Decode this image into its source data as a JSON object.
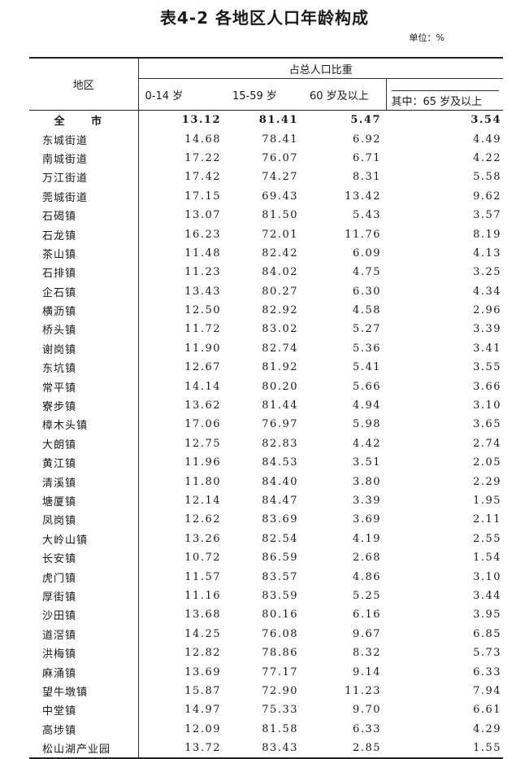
{
  "title": "表4-2  各地区人口年龄构成",
  "unit": "单位：%",
  "headers": {
    "region": "地区",
    "group": "占总人口比重",
    "cols": [
      "0-14 岁",
      "15-59 岁",
      "60 岁及以上",
      "其中：65 岁及以上"
    ]
  },
  "rows": [
    {
      "region": "全  市",
      "v": [
        "13.12",
        "81.41",
        "5.47",
        "3.54"
      ]
    },
    {
      "region": "东城街道",
      "v": [
        "14.68",
        "78.41",
        "6.92",
        "4.49"
      ]
    },
    {
      "region": "南城街道",
      "v": [
        "17.22",
        "76.07",
        "6.71",
        "4.22"
      ]
    },
    {
      "region": "万江街道",
      "v": [
        "17.42",
        "74.27",
        "8.31",
        "5.58"
      ]
    },
    {
      "region": "莞城街道",
      "v": [
        "17.15",
        "69.43",
        "13.42",
        "9.62"
      ]
    },
    {
      "region": "石碣镇",
      "v": [
        "13.07",
        "81.50",
        "5.43",
        "3.57"
      ]
    },
    {
      "region": "石龙镇",
      "v": [
        "16.23",
        "72.01",
        "11.76",
        "8.19"
      ]
    },
    {
      "region": "茶山镇",
      "v": [
        "11.48",
        "82.42",
        "6.09",
        "4.13"
      ]
    },
    {
      "region": "石排镇",
      "v": [
        "11.23",
        "84.02",
        "4.75",
        "3.25"
      ]
    },
    {
      "region": "企石镇",
      "v": [
        "13.43",
        "80.27",
        "6.30",
        "4.34"
      ]
    },
    {
      "region": "横沥镇",
      "v": [
        "12.50",
        "82.92",
        "4.58",
        "2.96"
      ]
    },
    {
      "region": "桥头镇",
      "v": [
        "11.72",
        "83.02",
        "5.27",
        "3.39"
      ]
    },
    {
      "region": "谢岗镇",
      "v": [
        "11.90",
        "82.74",
        "5.36",
        "3.41"
      ]
    },
    {
      "region": "东坑镇",
      "v": [
        "12.67",
        "81.92",
        "5.41",
        "3.55"
      ]
    },
    {
      "region": "常平镇",
      "v": [
        "14.14",
        "80.20",
        "5.66",
        "3.66"
      ]
    },
    {
      "region": "寮步镇",
      "v": [
        "13.62",
        "81.44",
        "4.94",
        "3.10"
      ]
    },
    {
      "region": "樟木头镇",
      "v": [
        "17.06",
        "76.97",
        "5.98",
        "3.65"
      ]
    },
    {
      "region": "大朗镇",
      "v": [
        "12.75",
        "82.83",
        "4.42",
        "2.74"
      ]
    },
    {
      "region": "黄江镇",
      "v": [
        "11.96",
        "84.53",
        "3.51",
        "2.05"
      ]
    },
    {
      "region": "清溪镇",
      "v": [
        "11.80",
        "84.40",
        "3.80",
        "2.29"
      ]
    },
    {
      "region": "塘厦镇",
      "v": [
        "12.14",
        "84.47",
        "3.39",
        "1.95"
      ]
    },
    {
      "region": "凤岗镇",
      "v": [
        "12.62",
        "83.69",
        "3.69",
        "2.11"
      ]
    },
    {
      "region": "大岭山镇",
      "v": [
        "13.26",
        "82.54",
        "4.19",
        "2.55"
      ]
    },
    {
      "region": "长安镇",
      "v": [
        "10.72",
        "86.59",
        "2.68",
        "1.54"
      ]
    },
    {
      "region": "虎门镇",
      "v": [
        "11.57",
        "83.57",
        "4.86",
        "3.10"
      ]
    },
    {
      "region": "厚街镇",
      "v": [
        "11.16",
        "83.59",
        "5.25",
        "3.44"
      ]
    },
    {
      "region": "沙田镇",
      "v": [
        "13.68",
        "80.16",
        "6.16",
        "3.95"
      ]
    },
    {
      "region": "道滘镇",
      "v": [
        "14.25",
        "76.08",
        "9.67",
        "6.85"
      ]
    },
    {
      "region": "洪梅镇",
      "v": [
        "12.82",
        "78.86",
        "8.32",
        "5.73"
      ]
    },
    {
      "region": "麻涌镇",
      "v": [
        "13.69",
        "77.17",
        "9.14",
        "6.33"
      ]
    },
    {
      "region": "望牛墩镇",
      "v": [
        "15.87",
        "72.90",
        "11.23",
        "7.94"
      ]
    },
    {
      "region": "中堂镇",
      "v": [
        "14.97",
        "75.33",
        "9.70",
        "6.61"
      ]
    },
    {
      "region": "高埗镇",
      "v": [
        "12.09",
        "81.58",
        "6.33",
        "4.29"
      ]
    },
    {
      "region": "松山湖产业园",
      "v": [
        "13.72",
        "83.43",
        "2.85",
        "1.55"
      ]
    }
  ]
}
